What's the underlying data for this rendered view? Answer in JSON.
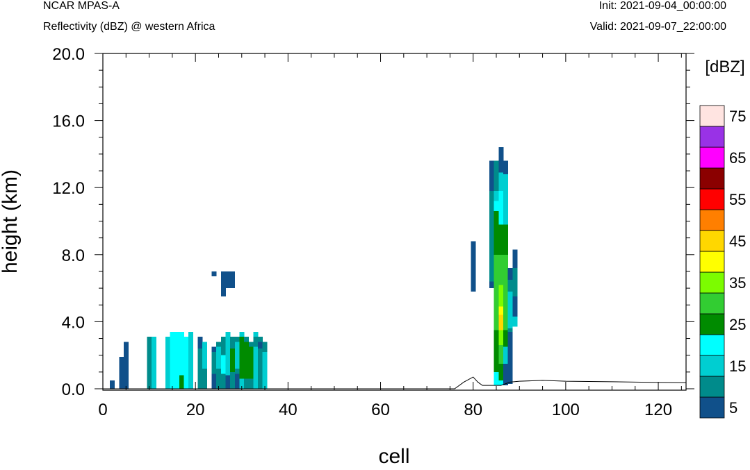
{
  "header": {
    "model": "NCAR MPAS-A",
    "field": "Reflectivity (dBZ) @ western Africa",
    "init": "Init: 2021-09-04_00:00:00",
    "valid": "Valid: 2021-09-07_22:00:00"
  },
  "chart_data": {
    "type": "heatmap",
    "xlabel": "cell",
    "ylabel": "height (km)",
    "xlim": [
      0,
      126
    ],
    "ylim": [
      0,
      20
    ],
    "xticks": [
      0,
      20,
      40,
      60,
      80,
      100,
      120
    ],
    "xtick_labels": [
      "0",
      "20",
      "40",
      "60",
      "80",
      "100",
      "120"
    ],
    "yticks": [
      0,
      4,
      8,
      12,
      16,
      20
    ],
    "ytick_labels": [
      "0.0",
      "4.0",
      "8.0",
      "12.0",
      "16.0",
      "20.0"
    ],
    "colorbar": {
      "unit_label": "[dBZ]",
      "levels": [
        5,
        10,
        15,
        20,
        25,
        30,
        35,
        40,
        45,
        50,
        55,
        60,
        65,
        70,
        75
      ],
      "colors": [
        "#10508a",
        "#008b8b",
        "#00ced1",
        "#00ffff",
        "#008b00",
        "#32cd32",
        "#7cfc00",
        "#ffff00",
        "#ffd700",
        "#ff7f00",
        "#ff0000",
        "#8b0000",
        "#ff00ff",
        "#9932e6",
        "#ffe4e1"
      ],
      "tick_labels": [
        "5",
        "15",
        "25",
        "35",
        "45",
        "55",
        "65",
        "75"
      ]
    },
    "cells": [
      [
        2,
        0.0,
        0.5,
        5
      ],
      [
        4,
        0.0,
        1.9,
        5
      ],
      [
        5,
        0.0,
        2.8,
        5
      ],
      [
        10,
        0.0,
        3.1,
        10
      ],
      [
        11,
        0.0,
        3.1,
        15
      ],
      [
        14,
        0.0,
        3.1,
        15
      ],
      [
        15,
        0.0,
        3.4,
        20
      ],
      [
        16,
        0.0,
        3.4,
        20
      ],
      [
        17,
        0.0,
        3.4,
        20
      ],
      [
        17,
        0.0,
        0.8,
        25
      ],
      [
        18,
        0.0,
        3.1,
        20
      ],
      [
        19,
        0.0,
        3.4,
        15
      ],
      [
        21,
        0.0,
        3.1,
        10
      ],
      [
        21,
        2.4,
        3.1,
        5
      ],
      [
        22,
        0.0,
        2.8,
        10
      ],
      [
        22,
        1.2,
        2.8,
        15
      ],
      [
        24,
        0.0,
        2.5,
        5
      ],
      [
        24,
        0.9,
        2.2,
        10
      ],
      [
        24,
        6.7,
        7.0,
        5
      ],
      [
        25,
        0.0,
        2.8,
        10
      ],
      [
        25,
        1.2,
        2.5,
        15
      ],
      [
        26,
        0.0,
        3.1,
        10
      ],
      [
        26,
        0.9,
        2.0,
        20
      ],
      [
        26,
        5.5,
        7.0,
        5
      ],
      [
        27,
        0.0,
        3.4,
        15
      ],
      [
        27,
        0.0,
        0.8,
        5
      ],
      [
        27,
        6.0,
        7.0,
        5
      ],
      [
        28,
        0.0,
        3.1,
        10
      ],
      [
        28,
        1.0,
        2.4,
        25
      ],
      [
        28,
        6.0,
        7.0,
        5
      ],
      [
        29,
        0.0,
        3.1,
        10
      ],
      [
        29,
        0.0,
        0.9,
        5
      ],
      [
        29,
        1.2,
        2.8,
        15
      ],
      [
        30,
        0.0,
        3.4,
        15
      ],
      [
        30,
        0.6,
        3.1,
        25
      ],
      [
        31,
        0.0,
        3.1,
        10
      ],
      [
        31,
        0.6,
        2.8,
        25
      ],
      [
        32,
        0.0,
        2.8,
        10
      ],
      [
        32,
        0.6,
        2.5,
        25
      ],
      [
        33,
        0.0,
        3.4,
        15
      ],
      [
        33,
        2.5,
        3.1,
        10
      ],
      [
        34,
        0.0,
        3.1,
        10
      ],
      [
        34,
        2.4,
        2.8,
        5
      ],
      [
        35,
        0.0,
        2.8,
        15
      ],
      [
        35,
        2.2,
        2.8,
        10
      ],
      [
        80,
        5.8,
        8.8,
        5
      ],
      [
        84,
        6.0,
        13.6,
        5
      ],
      [
        84,
        6.4,
        11.8,
        10
      ],
      [
        85,
        0.2,
        13.6,
        10
      ],
      [
        85,
        0.2,
        11.8,
        15
      ],
      [
        85,
        0.2,
        11.2,
        20
      ],
      [
        85,
        1.0,
        10.6,
        25
      ],
      [
        85,
        3.5,
        8.0,
        30
      ],
      [
        86,
        0.2,
        14.4,
        5
      ],
      [
        86,
        0.2,
        12.9,
        15
      ],
      [
        86,
        0.2,
        11.8,
        20
      ],
      [
        86,
        0.5,
        9.8,
        25
      ],
      [
        86,
        1.5,
        8.0,
        30
      ],
      [
        86,
        2.6,
        6.2,
        35
      ],
      [
        86,
        3.6,
        4.9,
        40
      ],
      [
        86,
        3.5,
        4.4,
        45
      ],
      [
        87,
        0.2,
        13.6,
        5
      ],
      [
        87,
        1.5,
        12.8,
        15
      ],
      [
        87,
        2.5,
        9.8,
        25
      ],
      [
        87,
        3.5,
        8.0,
        30
      ],
      [
        88,
        0.3,
        7.2,
        5
      ],
      [
        88,
        3.4,
        6.5,
        10
      ],
      [
        88,
        3.6,
        5.8,
        15
      ],
      [
        89,
        3.7,
        8.3,
        5
      ],
      [
        89,
        5.5,
        7.2,
        10
      ],
      [
        89,
        3.7,
        4.3,
        15
      ]
    ],
    "terrain": [
      [
        0,
        0
      ],
      [
        76,
        0
      ],
      [
        78,
        0.4
      ],
      [
        80,
        0.7
      ],
      [
        81,
        0.4
      ],
      [
        82,
        0.2
      ],
      [
        84,
        0.2
      ],
      [
        86,
        0.2
      ],
      [
        87,
        0.3
      ],
      [
        88,
        0.4
      ],
      [
        90,
        0.45
      ],
      [
        95,
        0.5
      ],
      [
        100,
        0.45
      ],
      [
        110,
        0.42
      ],
      [
        120,
        0.38
      ],
      [
        126,
        0.36
      ]
    ]
  }
}
